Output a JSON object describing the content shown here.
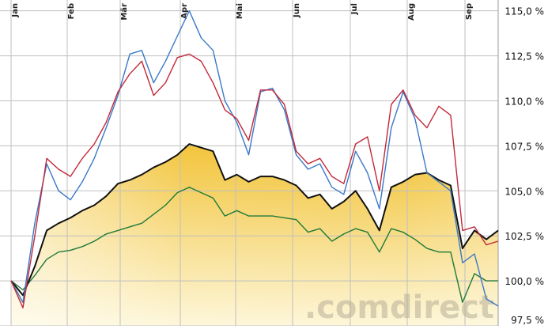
{
  "chart_data": {
    "type": "line",
    "watermark": ".comdirect",
    "y_ticks": [
      "115,0 %",
      "112,5 %",
      "110,0 %",
      "107,5 %",
      "105,0 %",
      "102,5 %",
      "100,0 %",
      "97,5 %"
    ],
    "y_tick_values": [
      115,
      112.5,
      110,
      107.5,
      105,
      102.5,
      100,
      97.5
    ],
    "ylim": [
      97.5,
      115.6
    ],
    "months": [
      "Jan",
      "Feb",
      "Mär",
      "Apr",
      "Mai",
      "Jun",
      "Jul",
      "Aug",
      "Sep"
    ],
    "grid": true,
    "legend": "none",
    "colors": {
      "blue": "#3a78c8",
      "red": "#c2283a",
      "black": "#111111",
      "green": "#1f7a3a",
      "area_top": "#f2c233",
      "area_bottom": "#fdf6d8"
    },
    "series": [
      {
        "color_key": "blue",
        "values": [
          100.0,
          98.8,
          103.2,
          106.5,
          105.0,
          104.5,
          105.5,
          106.8,
          108.5,
          110.3,
          112.6,
          112.8,
          111.0,
          112.2,
          113.6,
          115.0,
          113.5,
          112.8,
          110.0,
          108.8,
          107.0,
          110.5,
          110.7,
          109.5,
          107.0,
          106.2,
          106.5,
          105.2,
          104.8,
          107.2,
          106.0,
          104.0,
          108.5,
          110.5,
          109.0,
          106.0,
          105.5,
          105.0,
          101.0,
          101.5,
          99.0,
          98.6
        ]
      },
      {
        "color_key": "red",
        "values": [
          100.0,
          98.5,
          102.5,
          106.8,
          106.2,
          105.8,
          106.8,
          107.6,
          108.8,
          110.5,
          111.5,
          112.2,
          110.3,
          111.0,
          112.4,
          112.6,
          112.2,
          111.0,
          109.5,
          109.0,
          107.8,
          110.6,
          110.6,
          109.8,
          107.2,
          106.5,
          106.8,
          105.8,
          105.4,
          107.6,
          108.0,
          105.0,
          109.8,
          110.6,
          109.2,
          108.5,
          109.7,
          109.2,
          102.8,
          103.0,
          102.0,
          102.2
        ]
      },
      {
        "color_key": "black",
        "values": [
          100.0,
          99.2,
          100.8,
          102.8,
          103.2,
          103.5,
          103.9,
          104.2,
          104.7,
          105.4,
          105.6,
          105.9,
          106.3,
          106.6,
          107.0,
          107.6,
          107.4,
          107.2,
          105.6,
          105.9,
          105.5,
          105.8,
          105.8,
          105.6,
          105.3,
          104.6,
          104.8,
          104.0,
          104.4,
          105.0,
          104.0,
          102.8,
          105.2,
          105.5,
          105.9,
          106.0,
          105.6,
          105.3,
          101.8,
          102.8,
          102.3,
          102.8
        ]
      },
      {
        "color_key": "green",
        "values": [
          100.0,
          99.5,
          100.3,
          101.2,
          101.6,
          101.7,
          101.9,
          102.2,
          102.6,
          102.8,
          103.0,
          103.2,
          103.7,
          104.2,
          104.9,
          105.2,
          104.9,
          104.6,
          103.6,
          103.9,
          103.6,
          103.6,
          103.6,
          103.5,
          103.4,
          102.7,
          102.9,
          102.2,
          102.6,
          102.9,
          102.7,
          101.6,
          102.9,
          102.7,
          102.3,
          101.8,
          101.6,
          101.6,
          98.8,
          100.4,
          100.0,
          100.0
        ]
      }
    ]
  }
}
